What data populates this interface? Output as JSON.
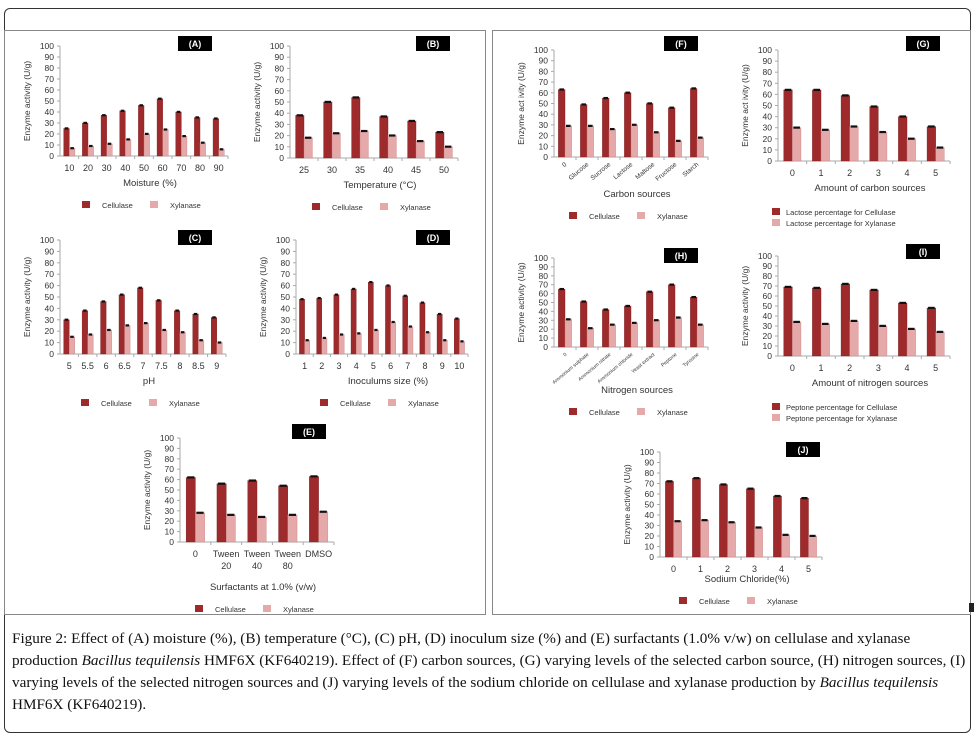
{
  "caption": {
    "label": "Figure 2:",
    "parts": [
      {
        "t": " Effect of (A) moisture (%), (B) temperature (°C), (C) pH, (D) inoculum size (%) and (E) surfactants (1.0% v/w) on cellulase and xylanase production ",
        "i": false
      },
      {
        "t": "Bacillus tequilensis",
        "i": true
      },
      {
        "t": " HMF6X (KF640219). Effect of (F) carbon sources, (G) varying levels of the selected carbon source, (H) nitrogen sources, (I) varying levels of the selected nitrogen sources and (J) varying levels of the sodium chloride on cellulase and xylanase production by ",
        "i": false
      },
      {
        "t": "Bacillus tequilensis",
        "i": true
      },
      {
        "t": " HMF6X (KF640219).",
        "i": false
      }
    ]
  },
  "colors": {
    "cellulase": "#9e2a2b",
    "xylanase": "#e6a9a9",
    "label_bg": "#000000"
  },
  "chart_data": [
    {
      "id": "A",
      "type": "bar",
      "panel_label": "(A)",
      "xlabel": "Moisture (%)",
      "ylabel": "Enzyme activity (U/g)",
      "ylim": [
        0,
        100
      ],
      "yticks": [
        0,
        10,
        20,
        30,
        40,
        50,
        60,
        70,
        80,
        90,
        100
      ],
      "categories": [
        "10",
        "20",
        "30",
        "40",
        "50",
        "60",
        "70",
        "80",
        "90"
      ],
      "series": [
        {
          "name": "Cellulase",
          "values": [
            25,
            30,
            37,
            41,
            46,
            52,
            40,
            35,
            34
          ]
        },
        {
          "name": "Xylanase",
          "values": [
            7,
            9,
            11,
            15,
            20,
            24,
            18,
            12,
            6
          ]
        }
      ],
      "legend": "bottom"
    },
    {
      "id": "B",
      "type": "bar",
      "panel_label": "(B)",
      "xlabel": "Temperature (°C)",
      "ylabel": "Enzyme activity (U/g)",
      "ylim": [
        0,
        100
      ],
      "yticks": [
        0,
        10,
        20,
        30,
        40,
        50,
        60,
        70,
        80,
        90,
        100
      ],
      "categories": [
        "25",
        "30",
        "35",
        "40",
        "45",
        "50"
      ],
      "series": [
        {
          "name": "Cellulase",
          "values": [
            38,
            50,
            54,
            37,
            33,
            23
          ]
        },
        {
          "name": "Xylanase",
          "values": [
            18,
            22,
            24,
            20,
            15,
            10
          ]
        }
      ],
      "legend": "bottom"
    },
    {
      "id": "C",
      "type": "bar",
      "panel_label": "(C)",
      "xlabel": "pH",
      "ylabel": "Enzyme activity (U/g)",
      "ylim": [
        0,
        100
      ],
      "yticks": [
        0,
        10,
        20,
        30,
        40,
        50,
        60,
        70,
        80,
        90,
        100
      ],
      "categories": [
        "5",
        "5.5",
        "6",
        "6.5",
        "7",
        "7.5",
        "8",
        "8.5",
        "9"
      ],
      "series": [
        {
          "name": "Cellulase",
          "values": [
            30,
            38,
            46,
            52,
            58,
            47,
            38,
            35,
            32
          ]
        },
        {
          "name": "Xylanase",
          "values": [
            15,
            17,
            21,
            25,
            27,
            21,
            19,
            12,
            10
          ]
        }
      ],
      "legend": "bottom"
    },
    {
      "id": "D",
      "type": "bar",
      "panel_label": "(D)",
      "xlabel": "Inoculums size (%)",
      "ylabel": "Enzyme activity (U/g)",
      "ylim": [
        0,
        100
      ],
      "yticks": [
        0,
        10,
        20,
        30,
        40,
        50,
        60,
        70,
        80,
        90,
        100
      ],
      "categories": [
        "1",
        "2",
        "3",
        "4",
        "5",
        "6",
        "7",
        "8",
        "9",
        "10"
      ],
      "series": [
        {
          "name": "Cellulase",
          "values": [
            48,
            49,
            52,
            57,
            63,
            60,
            51,
            45,
            35,
            31
          ]
        },
        {
          "name": "Xylanase",
          "values": [
            12,
            14,
            17,
            18,
            21,
            28,
            24,
            19,
            12,
            11
          ]
        }
      ],
      "legend": "bottom"
    },
    {
      "id": "E",
      "type": "bar",
      "panel_label": "(E)",
      "xlabel": "Surfactants at 1.0% (v/w)",
      "ylabel": "Enzyme activity (U/g)",
      "ylim": [
        0,
        100
      ],
      "yticks": [
        0,
        10,
        20,
        30,
        40,
        50,
        60,
        70,
        80,
        90,
        100
      ],
      "categories": [
        "0",
        "Tween 20",
        "Tween 40",
        "Tween 80",
        "DMSO"
      ],
      "series": [
        {
          "name": "Cellulase",
          "values": [
            62,
            56,
            59,
            54,
            63
          ]
        },
        {
          "name": "Xylanase",
          "values": [
            28,
            26,
            24,
            26,
            29
          ]
        }
      ],
      "legend": "bottom"
    },
    {
      "id": "F",
      "type": "bar",
      "panel_label": "(F)",
      "xlabel": "Carbon sources",
      "ylabel": "Enzyme act ivity (U/g)",
      "ylim": [
        0,
        100
      ],
      "yticks": [
        0,
        10,
        20,
        30,
        40,
        50,
        60,
        70,
        80,
        90,
        100
      ],
      "categories": [
        "0",
        "Glucose",
        "Sucrose",
        "Lactose",
        "Maltose",
        "Fructose",
        "Starch"
      ],
      "rotate_ticks": true,
      "series": [
        {
          "name": "Cellulase",
          "values": [
            63,
            49,
            55,
            60,
            50,
            46,
            64
          ]
        },
        {
          "name": "Xylanase",
          "values": [
            29,
            29,
            26,
            30,
            23,
            15,
            18
          ]
        }
      ],
      "legend": "bottom"
    },
    {
      "id": "G",
      "type": "bar",
      "panel_label": "(G)",
      "xlabel": "Amount of carbon sources",
      "ylabel": "Enzyme act ivity (U/g)",
      "ylim": [
        0,
        100
      ],
      "yticks": [
        0,
        10,
        20,
        30,
        40,
        50,
        60,
        70,
        80,
        90,
        100
      ],
      "categories": [
        "0",
        "1",
        "2",
        "3",
        "4",
        "5"
      ],
      "series": [
        {
          "name": "Lactose percentage for Cellulase",
          "values": [
            64,
            64,
            59,
            49,
            40,
            31
          ]
        },
        {
          "name": "Lactose percentage for Xylanase",
          "values": [
            30,
            28,
            31,
            26,
            20,
            12
          ]
        }
      ],
      "legend": "bottom-stacked"
    },
    {
      "id": "H",
      "type": "bar",
      "panel_label": "(H)",
      "xlabel": "Nitrogen sources",
      "ylabel": "Enzyme activity (U/g)",
      "ylim": [
        0,
        100
      ],
      "yticks": [
        0,
        10,
        20,
        30,
        40,
        50,
        60,
        70,
        80,
        90,
        100
      ],
      "categories": [
        "0",
        "Ammonium sulphate",
        "Ammonium nitrate",
        "Ammonium chloride",
        "Yeast extract",
        "Peptone",
        "Tyrosine"
      ],
      "rotate_ticks": true,
      "series": [
        {
          "name": "Cellulase",
          "values": [
            65,
            51,
            42,
            46,
            62,
            70,
            56
          ]
        },
        {
          "name": "Xylanase",
          "values": [
            31,
            21,
            25,
            27,
            30,
            33,
            25
          ]
        }
      ],
      "legend": "bottom"
    },
    {
      "id": "I",
      "type": "bar",
      "panel_label": "(I)",
      "xlabel": "Amount of nitrogen sources",
      "ylabel": "Enzyme activity (U/g)",
      "ylim": [
        0,
        100
      ],
      "yticks": [
        0,
        10,
        20,
        30,
        40,
        50,
        60,
        70,
        80,
        90,
        100
      ],
      "categories": [
        "0",
        "1",
        "2",
        "3",
        "4",
        "5"
      ],
      "series": [
        {
          "name": "Peptone percentage for Cellulase",
          "values": [
            69,
            68,
            72,
            66,
            53,
            48
          ]
        },
        {
          "name": "Peptone percentage for Xylanase",
          "values": [
            34,
            32,
            35,
            30,
            27,
            24
          ]
        }
      ],
      "legend": "bottom-stacked"
    },
    {
      "id": "J",
      "type": "bar",
      "panel_label": "(J)",
      "xlabel": "Sodium Chloride(%)",
      "ylabel": "Enzyme activity (U/g)",
      "ylim": [
        0,
        100
      ],
      "yticks": [
        0,
        10,
        20,
        30,
        40,
        50,
        60,
        70,
        80,
        90,
        100
      ],
      "categories": [
        "0",
        "1",
        "2",
        "3",
        "4",
        "5"
      ],
      "series": [
        {
          "name": "Cellulase",
          "values": [
            72,
            75,
            69,
            65,
            58,
            56
          ]
        },
        {
          "name": "Xylanase",
          "values": [
            34,
            35,
            33,
            28,
            21,
            20
          ]
        }
      ],
      "legend": "bottom"
    }
  ]
}
